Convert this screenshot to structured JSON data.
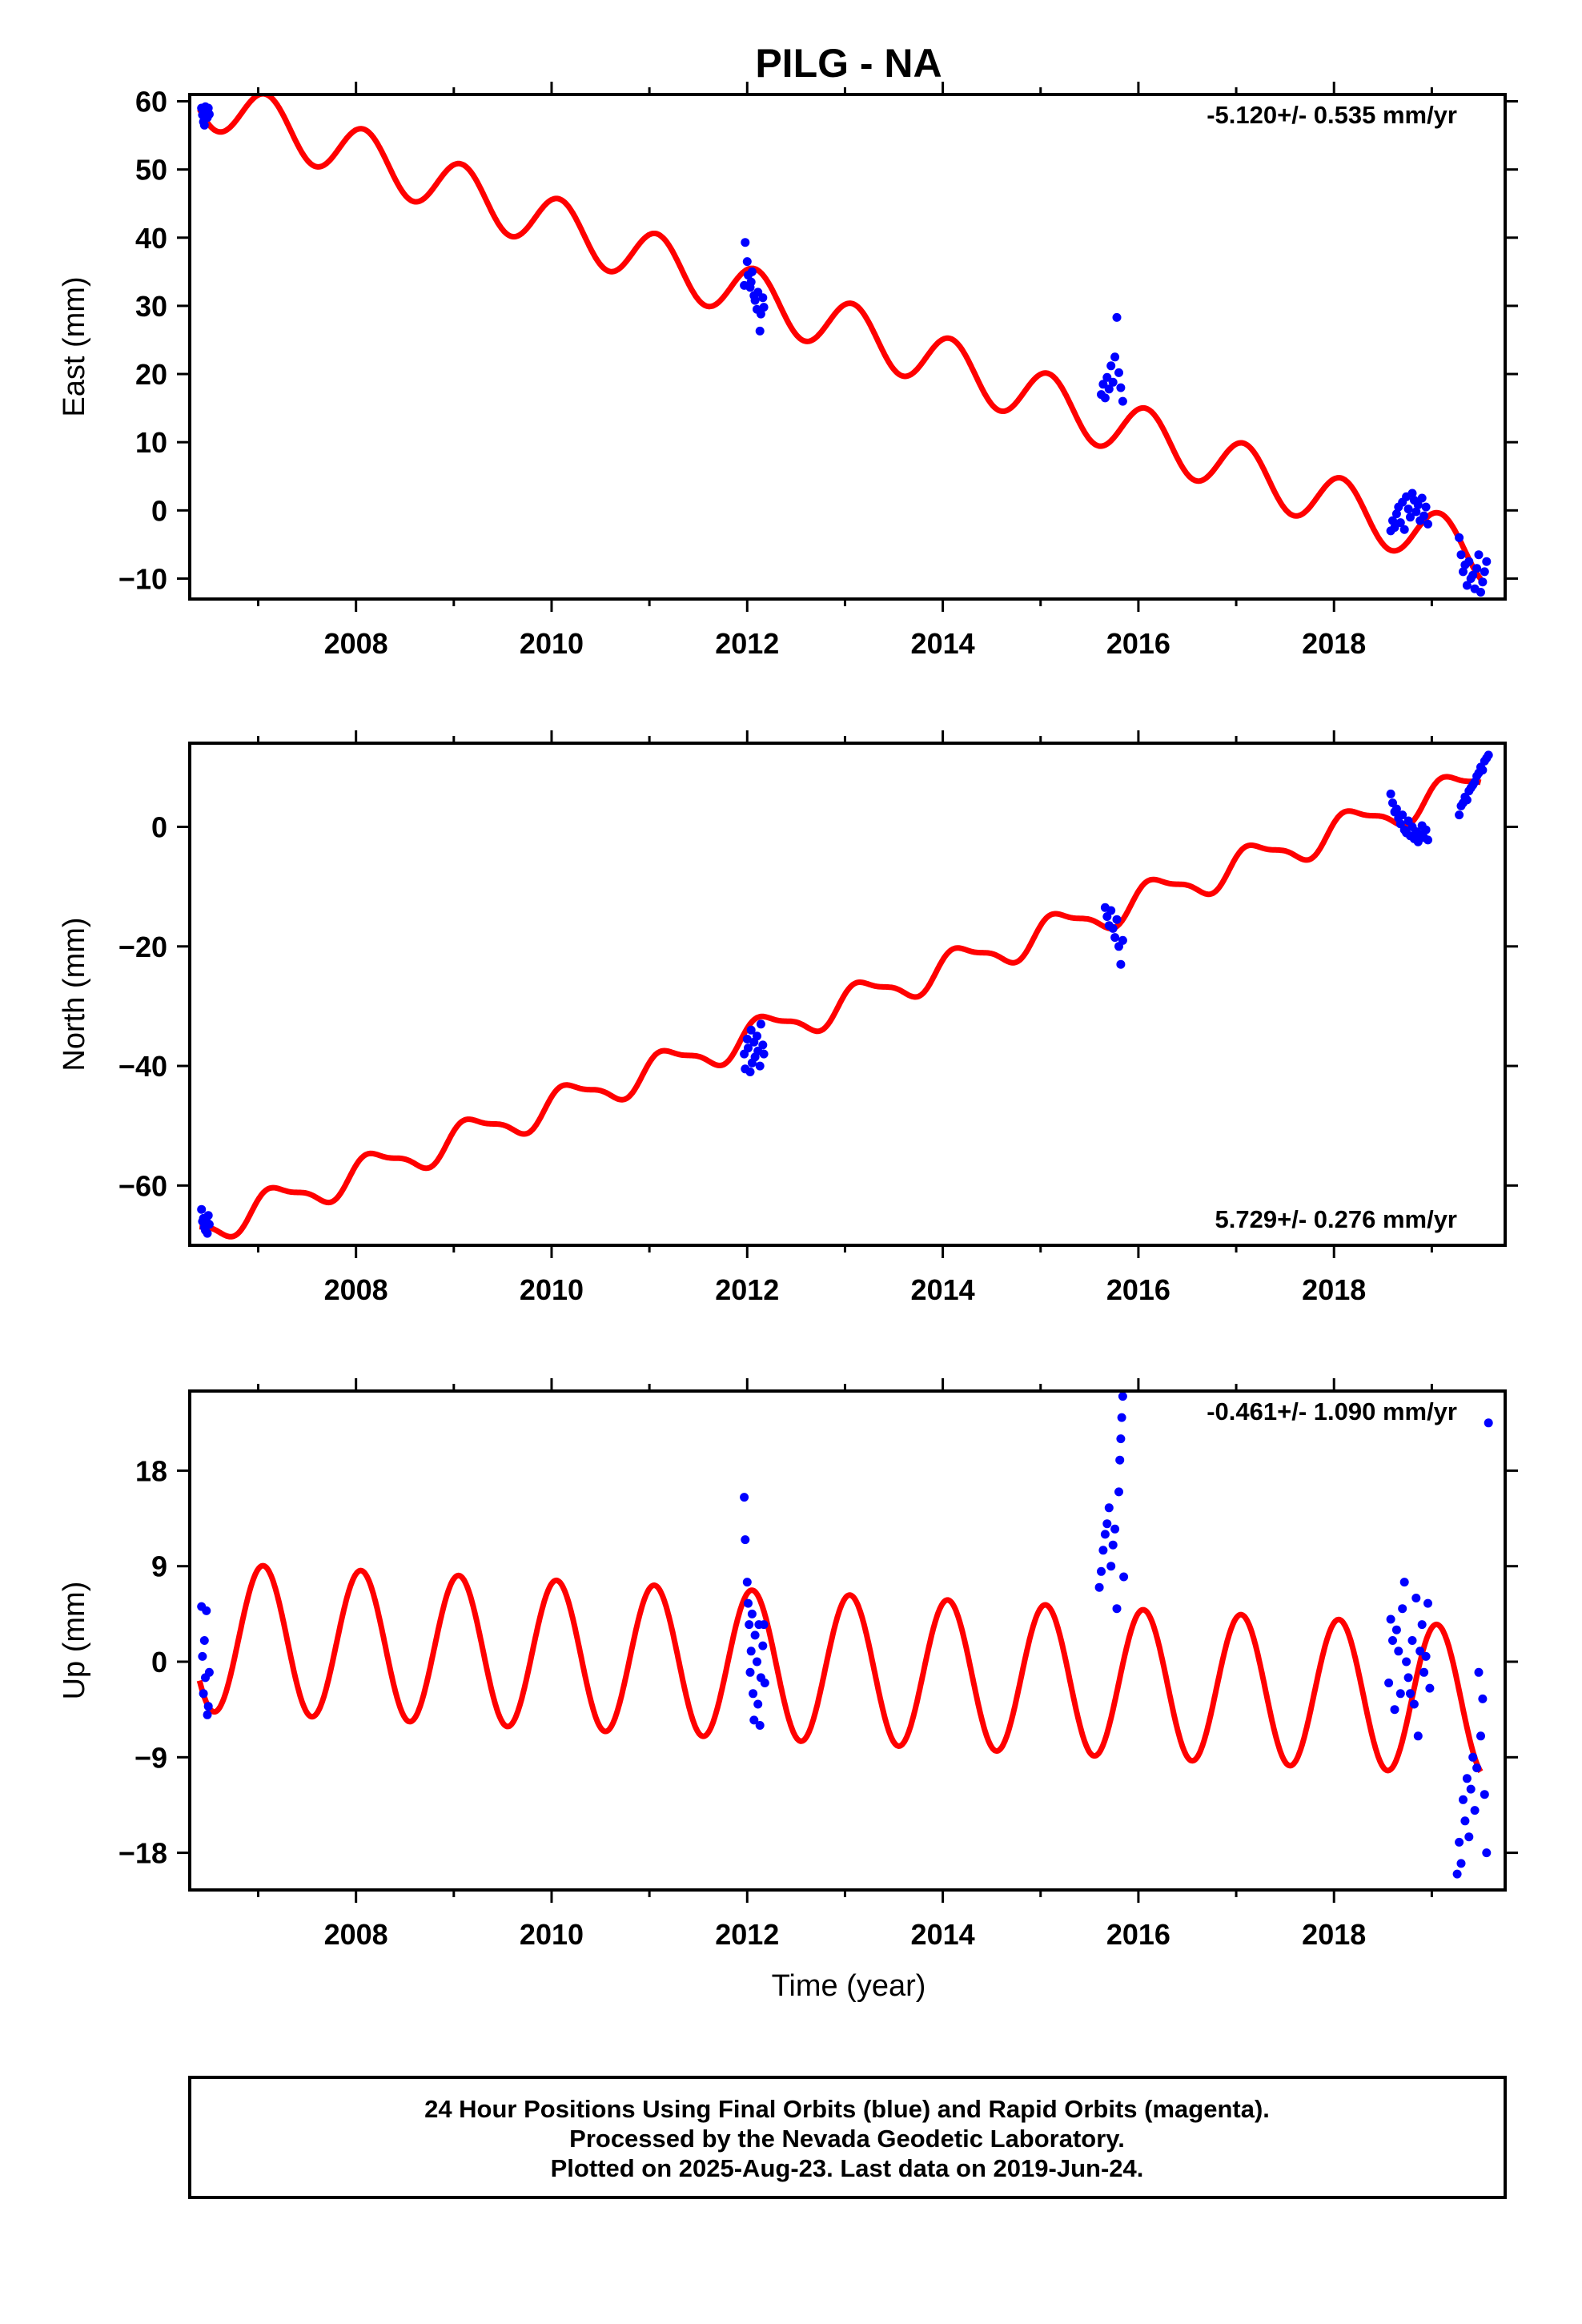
{
  "title": "PILG - NA",
  "xlabel": "Time (year)",
  "x_ticks": [
    2008,
    2010,
    2012,
    2014,
    2016,
    2018
  ],
  "colors": {
    "final_orbits": "#0000ff",
    "model": "#ff0000",
    "frame": "#000000"
  },
  "chart_data": [
    {
      "type": "scatter",
      "component": "east",
      "ylabel": "East (mm)",
      "rate_label": "-5.120+/- 0.535 mm/yr",
      "rate_position": "top-right",
      "xlim": [
        2006.3,
        2019.75
      ],
      "ylim": [
        -13,
        61
      ],
      "yticks": [
        -10,
        0,
        10,
        20,
        30,
        40,
        50,
        60
      ],
      "model": {
        "offset": 60,
        "t0": 2006.5,
        "rate": -5.12,
        "annual_amp": 4.0,
        "annual_phase": 4.2,
        "semi_amp": 0.0,
        "semi_phase": 0.0
      },
      "series": [
        {
          "x": [
            2006.42,
            2006.43,
            2006.44,
            2006.45,
            2006.46,
            2006.47,
            2006.48,
            2006.49,
            2006.5
          ],
          "y": [
            59,
            58,
            57,
            56.5,
            59.2,
            58.3,
            57.6,
            59,
            58.1
          ]
        },
        {
          "x": [
            2011.97,
            2011.98,
            2012.0,
            2012.01,
            2012.03,
            2012.04,
            2012.05,
            2012.07,
            2012.08,
            2012.1,
            2012.11,
            2012.13,
            2012.14,
            2012.16,
            2012.17
          ],
          "y": [
            33,
            39.3,
            36.5,
            34.5,
            32.7,
            33.5,
            35.0,
            31.5,
            30.8,
            29.5,
            32.0,
            26.3,
            28.8,
            31.2,
            29.8
          ]
        },
        {
          "x": [
            2015.62,
            2015.64,
            2015.66,
            2015.68,
            2015.7,
            2015.72,
            2015.74,
            2015.76,
            2015.78,
            2015.8,
            2015.82,
            2015.84
          ],
          "y": [
            17,
            18.5,
            16.5,
            19.5,
            17.8,
            21.2,
            18.8,
            22.5,
            28.3,
            20.2,
            18.0,
            16.0
          ]
        },
        {
          "x": [
            2018.58,
            2018.6,
            2018.62,
            2018.64,
            2018.66,
            2018.68,
            2018.7,
            2018.72,
            2018.74,
            2018.76,
            2018.78,
            2018.8,
            2018.82,
            2018.84,
            2018.86,
            2018.88,
            2018.9,
            2018.92,
            2018.94,
            2018.96
          ],
          "y": [
            -3,
            -1.5,
            -2.5,
            -0.5,
            0.5,
            -1.8,
            1.2,
            -2.8,
            2.0,
            0.2,
            -1.0,
            2.5,
            1.5,
            -0.2,
            0.8,
            -1.5,
            1.8,
            -0.8,
            0.5,
            -2.0
          ]
        },
        {
          "x": [
            2019.28,
            2019.3,
            2019.32,
            2019.34,
            2019.36,
            2019.38,
            2019.4,
            2019.42,
            2019.44,
            2019.46,
            2019.48,
            2019.5,
            2019.52,
            2019.54,
            2019.56
          ],
          "y": [
            -4.0,
            -6.5,
            -9.0,
            -8.0,
            -11.0,
            -7.5,
            -10.0,
            -9.5,
            -11.5,
            -8.5,
            -6.5,
            -12.0,
            -10.5,
            -9.0,
            -7.5
          ]
        }
      ]
    },
    {
      "type": "scatter",
      "component": "north",
      "ylabel": "North (mm)",
      "rate_label": "5.729+/- 0.276 mm/yr",
      "rate_position": "bottom-right",
      "xlim": [
        2006.3,
        2019.75
      ],
      "ylim": [
        -70,
        14
      ],
      "yticks": [
        -60,
        -40,
        -20,
        0
      ],
      "model": {
        "offset": -66.8,
        "t0": 2006.5,
        "rate": 5.729,
        "annual_amp": 2.6,
        "annual_phase": 3.5,
        "semi_amp": 0.8,
        "semi_phase": 1.0
      },
      "series": [
        {
          "x": [
            2006.42,
            2006.43,
            2006.44,
            2006.45,
            2006.46,
            2006.47,
            2006.48,
            2006.49,
            2006.5
          ],
          "y": [
            -64,
            -66,
            -65.5,
            -67,
            -67.5,
            -66,
            -68,
            -65,
            -66.5
          ]
        },
        {
          "x": [
            2011.97,
            2011.98,
            2012.0,
            2012.01,
            2012.03,
            2012.04,
            2012.05,
            2012.07,
            2012.08,
            2012.1,
            2012.11,
            2012.13,
            2012.14,
            2012.16,
            2012.17
          ],
          "y": [
            -38,
            -40.5,
            -35.5,
            -37,
            -41,
            -34,
            -39.5,
            -36,
            -38.5,
            -35,
            -37.5,
            -40,
            -33,
            -36.5,
            -38
          ]
        },
        {
          "x": [
            2015.66,
            2015.68,
            2015.7,
            2015.72,
            2015.74,
            2015.76,
            2015.78,
            2015.8,
            2015.82,
            2015.84
          ],
          "y": [
            -13.5,
            -15,
            -16.5,
            -14,
            -17,
            -18.5,
            -15.5,
            -20,
            -23,
            -19
          ]
        },
        {
          "x": [
            2018.58,
            2018.6,
            2018.62,
            2018.64,
            2018.66,
            2018.68,
            2018.7,
            2018.72,
            2018.74,
            2018.76,
            2018.78,
            2018.8,
            2018.82,
            2018.84,
            2018.86,
            2018.88,
            2018.9,
            2018.92,
            2018.94,
            2018.96
          ],
          "y": [
            5.5,
            4,
            2.5,
            3,
            1.5,
            0.5,
            2,
            -0.5,
            -1,
            1,
            -1.5,
            0,
            -2,
            -0.8,
            -2.5,
            -1.2,
            0.2,
            -1.8,
            -0.5,
            -2.2
          ]
        },
        {
          "x": [
            2019.28,
            2019.3,
            2019.32,
            2019.34,
            2019.36,
            2019.38,
            2019.4,
            2019.42,
            2019.44,
            2019.46,
            2019.48,
            2019.5,
            2019.52,
            2019.54,
            2019.56,
            2019.58
          ],
          "y": [
            2,
            3.5,
            4,
            5,
            4.5,
            6,
            6.5,
            7,
            7.5,
            8.5,
            9,
            10,
            9.5,
            11,
            11.5,
            12
          ]
        }
      ]
    },
    {
      "type": "scatter",
      "component": "up",
      "ylabel": "Up (mm)",
      "rate_label": "-0.461+/- 1.090 mm/yr",
      "rate_position": "top-right",
      "xlim": [
        2006.3,
        2019.75
      ],
      "ylim": [
        -21.5,
        25.5
      ],
      "yticks": [
        -18,
        -9,
        0,
        9,
        18
      ],
      "model": {
        "offset": 2.3,
        "t0": 2006.5,
        "rate": -0.461,
        "annual_amp": 7.0,
        "annual_phase": 4.4,
        "semi_amp": 0.0,
        "semi_phase": 0.0
      },
      "series": [
        {
          "x": [
            2006.42,
            2006.43,
            2006.44,
            2006.45,
            2006.46,
            2006.47,
            2006.48,
            2006.49,
            2006.5
          ],
          "y": [
            5.2,
            0.5,
            -3,
            2,
            -1.5,
            4.8,
            -5,
            -4.2,
            -1
          ]
        },
        {
          "x": [
            2011.97,
            2011.98,
            2012.0,
            2012.01,
            2012.02,
            2012.03,
            2012.04,
            2012.05,
            2012.06,
            2012.07,
            2012.08,
            2012.1,
            2012.11,
            2012.12,
            2012.13,
            2012.14,
            2012.16,
            2012.17,
            2012.18
          ],
          "y": [
            15.5,
            11.5,
            7.5,
            5.5,
            3.5,
            -1,
            1,
            4.5,
            -3,
            -5.5,
            2.5,
            0,
            -4,
            3.5,
            -6,
            -1.5,
            1.5,
            3.5,
            -2
          ]
        },
        {
          "x": [
            2015.6,
            2015.62,
            2015.64,
            2015.66,
            2015.68,
            2015.7,
            2015.72,
            2015.74,
            2015.76,
            2015.78,
            2015.8,
            2015.81,
            2015.82,
            2015.83,
            2015.84,
            2015.85
          ],
          "y": [
            7,
            8.5,
            10.5,
            12,
            13,
            14.5,
            9,
            11,
            12.5,
            5,
            16,
            19,
            21,
            23,
            25,
            8
          ]
        },
        {
          "x": [
            2018.56,
            2018.58,
            2018.6,
            2018.62,
            2018.64,
            2018.66,
            2018.68,
            2018.7,
            2018.72,
            2018.74,
            2018.76,
            2018.78,
            2018.8,
            2018.82,
            2018.84,
            2018.86,
            2018.88,
            2018.9,
            2018.92,
            2018.94,
            2018.96,
            2018.98
          ],
          "y": [
            -2,
            4,
            2,
            -4.5,
            3,
            1,
            -3,
            5,
            7.5,
            0,
            -1.5,
            -3,
            2,
            -4,
            6,
            -7,
            1,
            3.5,
            -1,
            0.5,
            5.5,
            -2.5
          ]
        },
        {
          "x": [
            2019.26,
            2019.28,
            2019.3,
            2019.32,
            2019.34,
            2019.36,
            2019.38,
            2019.4,
            2019.42,
            2019.44,
            2019.46,
            2019.48,
            2019.5,
            2019.52,
            2019.54,
            2019.56,
            2019.58
          ],
          "y": [
            -20,
            -17,
            -19,
            -13,
            -15,
            -11,
            -16.5,
            -12,
            -9,
            -14,
            -10,
            -1,
            -7,
            -3.5,
            -12.5,
            -18,
            22.5
          ]
        }
      ]
    }
  ],
  "footnote": {
    "lines": [
      "24 Hour Positions Using Final Orbits (blue) and Rapid Orbits (magenta).",
      "Processed by the Nevada Geodetic Laboratory.",
      "Plotted on 2025-Aug-23. Last data on 2019-Jun-24."
    ]
  }
}
